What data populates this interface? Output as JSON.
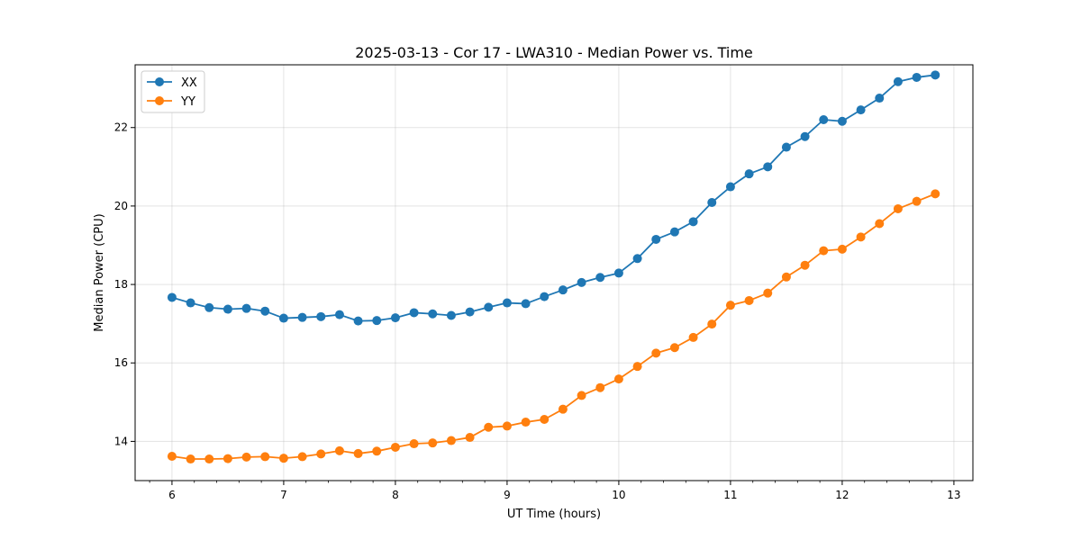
{
  "chart_data": {
    "type": "line",
    "title": "2025-03-13 - Cor 17 - LWA310 - Median Power vs. Time",
    "xlabel": "UT Time (hours)",
    "ylabel": "Median Power (CPU)",
    "xlim": [
      5.67,
      13.17
    ],
    "ylim": [
      13.0,
      23.6
    ],
    "xticks": [
      6,
      7,
      8,
      9,
      10,
      11,
      12,
      13
    ],
    "xtick_labels": [
      "6",
      "7",
      "8",
      "9",
      "10",
      "11",
      "12",
      "13"
    ],
    "yticks": [
      14,
      16,
      18,
      20,
      22
    ],
    "ytick_labels": [
      "14",
      "16",
      "18",
      "20",
      "22"
    ],
    "grid": true,
    "legend_position": "top-left",
    "x": [
      6.0,
      6.1667,
      6.3333,
      6.5,
      6.6667,
      6.8333,
      7.0,
      7.1667,
      7.3333,
      7.5,
      7.6667,
      7.8333,
      8.0,
      8.1667,
      8.3333,
      8.5,
      8.6667,
      8.8333,
      9.0,
      9.1667,
      9.3333,
      9.5,
      9.6667,
      9.8333,
      10.0,
      10.1667,
      10.3333,
      10.5,
      10.6667,
      10.8333,
      11.0,
      11.1667,
      11.3333,
      11.5,
      11.6667,
      11.8333,
      12.0,
      12.1667,
      12.3333,
      12.5,
      12.6667,
      12.8333
    ],
    "series": [
      {
        "name": "XX",
        "color": "#1f77b4",
        "values": [
          17.67,
          17.53,
          17.41,
          17.37,
          17.39,
          17.32,
          17.14,
          17.16,
          17.18,
          17.23,
          17.07,
          17.08,
          17.15,
          17.28,
          17.25,
          17.21,
          17.3,
          17.42,
          17.53,
          17.51,
          17.69,
          17.86,
          18.05,
          18.18,
          18.29,
          18.66,
          19.15,
          19.34,
          19.6,
          20.09,
          20.49,
          20.82,
          21.0,
          21.5,
          21.77,
          22.2,
          22.16,
          22.45,
          22.75,
          23.17,
          23.28,
          23.34
        ]
      },
      {
        "name": "YY",
        "color": "#ff7f0e",
        "values": [
          13.62,
          13.55,
          13.55,
          13.56,
          13.6,
          13.61,
          13.57,
          13.61,
          13.68,
          13.76,
          13.69,
          13.75,
          13.85,
          13.94,
          13.96,
          14.02,
          14.1,
          14.36,
          14.39,
          14.49,
          14.56,
          14.82,
          15.17,
          15.37,
          15.59,
          15.91,
          16.25,
          16.39,
          16.65,
          16.99,
          17.47,
          17.59,
          17.78,
          18.19,
          18.49,
          18.86,
          18.9,
          19.21,
          19.55,
          19.93,
          20.12,
          20.31
        ]
      }
    ]
  }
}
